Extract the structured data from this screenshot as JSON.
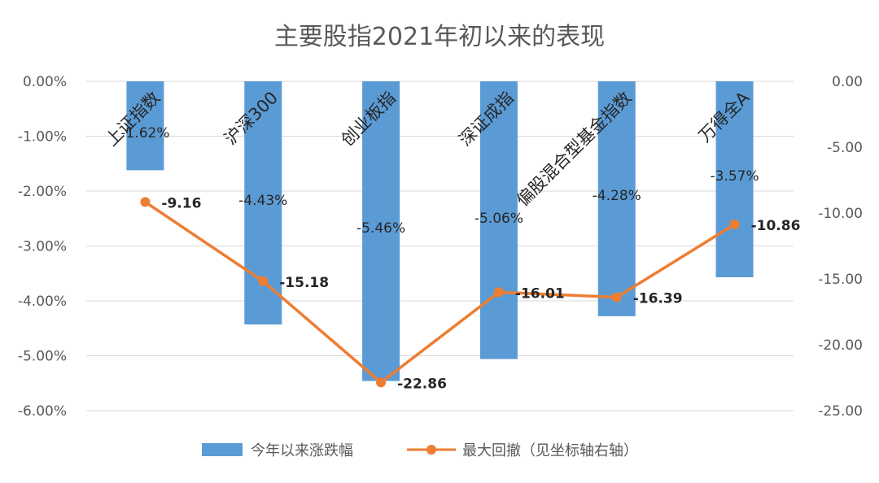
{
  "chart_data": {
    "type": "bar",
    "title": "主要股指2021年初以来的表现",
    "categories": [
      "上证指数",
      "沪深300",
      "创业板指",
      "深证成指",
      "偏股混合型基金指数",
      "万得全A"
    ],
    "series": [
      {
        "name": "今年以来涨跌幅",
        "type": "bar",
        "axis": "left",
        "values": [
          -1.62,
          -4.43,
          -5.46,
          -5.06,
          -4.28,
          -3.57
        ],
        "labels": [
          "-1.62%",
          "-4.43%",
          "-5.46%",
          "-5.06%",
          "-4.28%",
          "-3.57%"
        ]
      },
      {
        "name": "最大回撤（见坐标轴右轴）",
        "type": "line",
        "axis": "right",
        "values": [
          -9.16,
          -15.18,
          -22.86,
          -16.01,
          -16.39,
          -10.86
        ],
        "labels": [
          "-9.16",
          "-15.18",
          "-22.86",
          "-16.01",
          "-16.39",
          "-10.86"
        ]
      }
    ],
    "left_axis": {
      "ylim": [
        -6,
        0
      ],
      "ticks": [
        "0.00%",
        "-1.00%",
        "-2.00%",
        "-3.00%",
        "-4.00%",
        "-5.00%",
        "-6.00%"
      ],
      "tick_values": [
        0,
        -1,
        -2,
        -3,
        -4,
        -5,
        -6
      ]
    },
    "right_axis": {
      "ylim": [
        -25,
        0
      ],
      "ticks": [
        "0.00",
        "-5.00",
        "-10.00",
        "-15.00",
        "-20.00",
        "-25.00"
      ],
      "tick_values": [
        0,
        -5,
        -10,
        -15,
        -20,
        -25
      ]
    },
    "grid": true,
    "legend_position": "bottom",
    "colors": {
      "bar": "#5B9BD5",
      "line": "#ED7D31",
      "grid": "#D9D9D9"
    }
  }
}
